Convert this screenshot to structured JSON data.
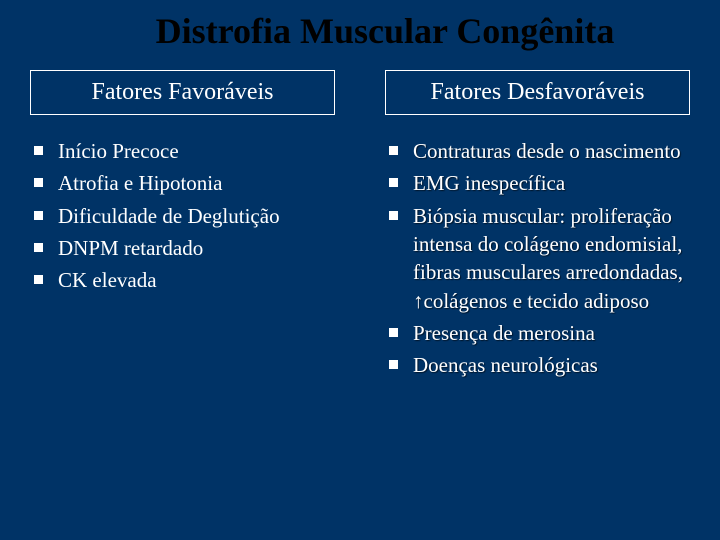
{
  "title": "Distrofia Muscular Congênita",
  "colors": {
    "background": "#003366",
    "title_text": "#000000",
    "body_text": "#ffffff",
    "box_border": "#ffffff",
    "bullet_fill": "#ffffff"
  },
  "typography": {
    "title_fontsize": 36,
    "title_weight": "bold",
    "header_fontsize": 24,
    "body_fontsize": 21,
    "font_family": "Times New Roman"
  },
  "left": {
    "header": "Fatores Favoráveis",
    "items": [
      "Início Precoce",
      "Atrofia e Hipotonia",
      "Dificuldade de Deglutição",
      "DNPM retardado",
      "CK elevada"
    ]
  },
  "right": {
    "header": "Fatores Desfavoráveis",
    "items": [
      "Contraturas desde o nascimento",
      "EMG inespecífica",
      "Biópsia muscular: proliferação intensa do colágeno endomisial, fibras musculares arredondadas, ↑colágenos e tecido adiposo",
      "Presença de merosina",
      "Doenças neurológicas"
    ]
  }
}
